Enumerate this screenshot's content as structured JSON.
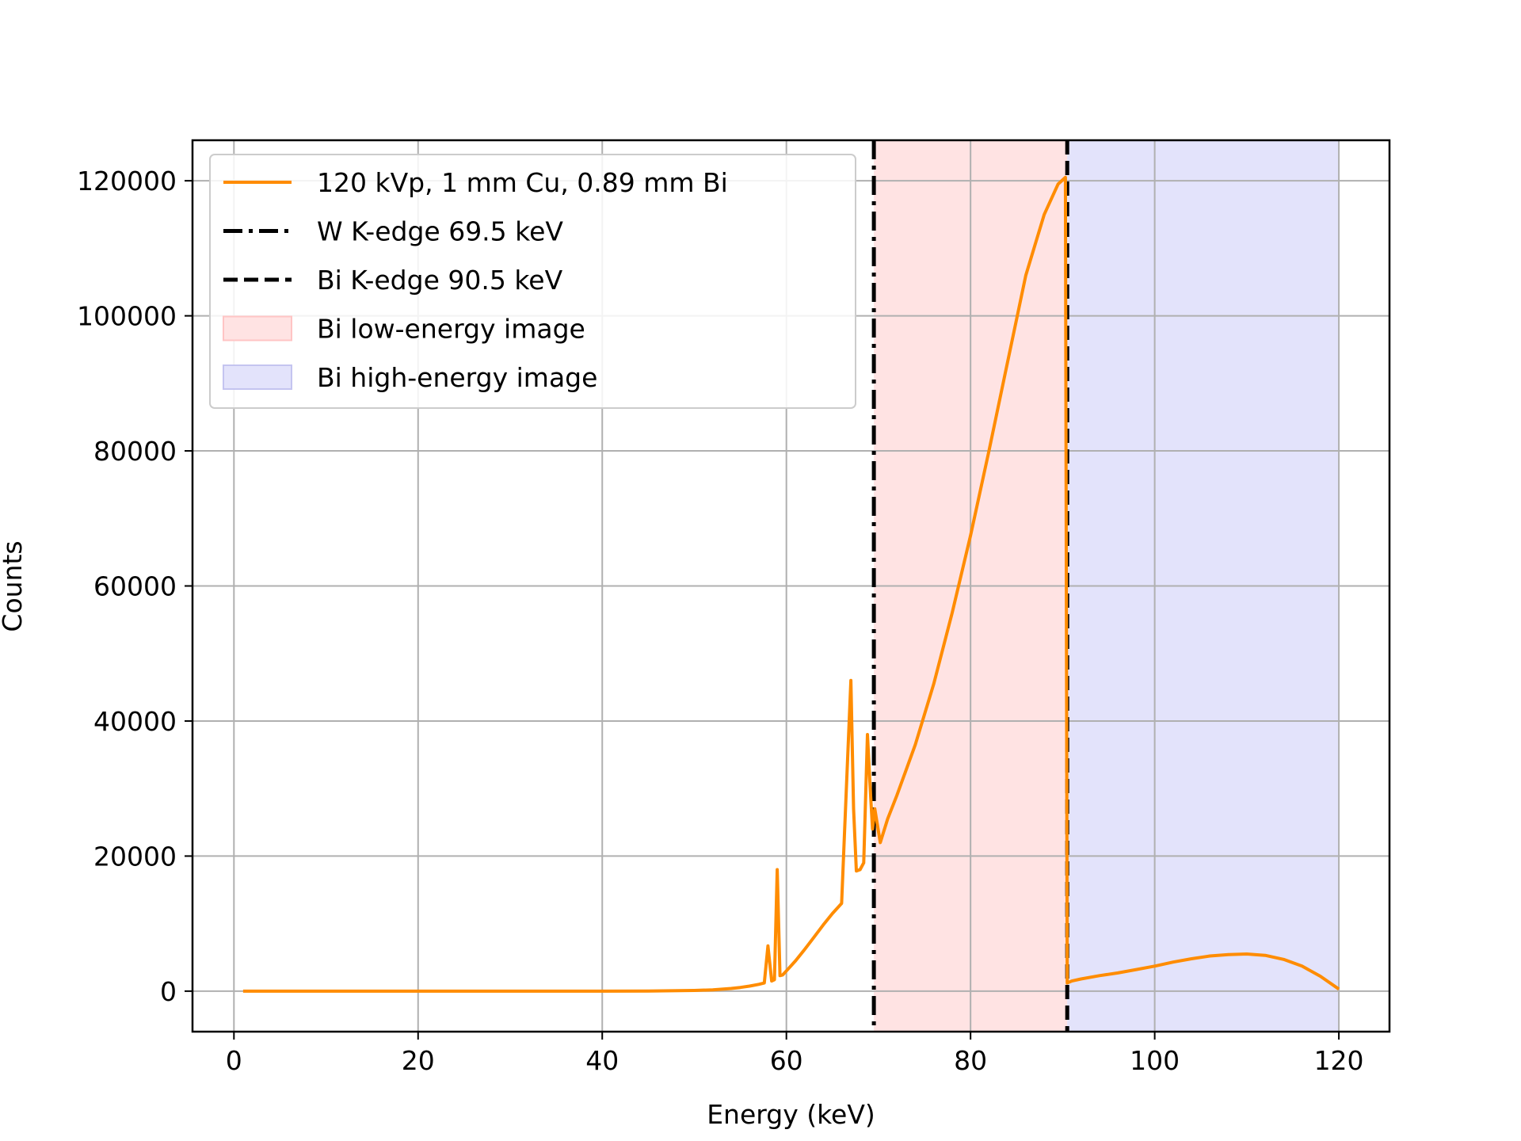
{
  "chart_data": {
    "type": "line",
    "xlabel": "Energy (keV)",
    "ylabel": "Counts",
    "xlim": [
      -4.5,
      125.5
    ],
    "ylim": [
      -6000,
      126000
    ],
    "x_ticks": [
      0,
      20,
      40,
      60,
      80,
      100,
      120
    ],
    "x_tick_labels": [
      "0",
      "20",
      "40",
      "60",
      "80",
      "100",
      "120"
    ],
    "y_ticks": [
      0,
      20000,
      40000,
      60000,
      80000,
      100000,
      120000
    ],
    "y_tick_labels": [
      "0",
      "20000",
      "40000",
      "60000",
      "80000",
      "100000",
      "120000"
    ],
    "grid": true,
    "legend_position": "upper-left",
    "colors": {
      "spectrum": "#ff8c00",
      "edge": "#000000",
      "low_band": "#ffe3e3",
      "high_band": "#e3e3fb"
    },
    "series": [
      {
        "name": "120 kVp, 1 mm Cu, 0.89 mm Bi",
        "style": "solid",
        "x": [
          1,
          10,
          20,
          30,
          40,
          45,
          50,
          52,
          54,
          55,
          56,
          57,
          57.6,
          58,
          58.4,
          58.7,
          59.0,
          59.3,
          59.6,
          60,
          61,
          62,
          63,
          64,
          65,
          66,
          66.3,
          67.0,
          67.3,
          67.6,
          68.0,
          68.4,
          68.8,
          69.1,
          69.35,
          69.6,
          70.2,
          71,
          72,
          74,
          76,
          78,
          80,
          82,
          84,
          86,
          88,
          89.5,
          90.3,
          90.5,
          91,
          92,
          94,
          96,
          98,
          100,
          102,
          104,
          106,
          108,
          110,
          112,
          114,
          116,
          118,
          120
        ],
        "y": [
          0,
          0,
          0,
          0,
          0,
          10,
          100,
          200,
          400,
          550,
          750,
          1000,
          1200,
          6700,
          1500,
          1700,
          18000,
          2300,
          2400,
          3000,
          4500,
          6200,
          8000,
          9800,
          11500,
          13000,
          23000,
          46000,
          27000,
          17800,
          18000,
          19000,
          38000,
          30000,
          24000,
          27000,
          22000,
          25500,
          29000,
          36500,
          45500,
          56000,
          67500,
          80000,
          93000,
          106000,
          115000,
          119500,
          120500,
          1200,
          1500,
          1800,
          2300,
          2700,
          3200,
          3700,
          4300,
          4800,
          5200,
          5400,
          5500,
          5300,
          4700,
          3700,
          2200,
          300
        ]
      },
      {
        "name": "W K-edge 69.5 keV",
        "style": "dashdot",
        "x": [
          69.5,
          69.5
        ]
      },
      {
        "name": "Bi K-edge 90.5 keV",
        "style": "dashed",
        "x": [
          90.5,
          90.5
        ]
      },
      {
        "name": "Bi low-energy image",
        "style": "band",
        "x": [
          69.5,
          90.5
        ]
      },
      {
        "name": "Bi high-energy image",
        "style": "band",
        "x": [
          90.5,
          120
        ]
      }
    ]
  }
}
